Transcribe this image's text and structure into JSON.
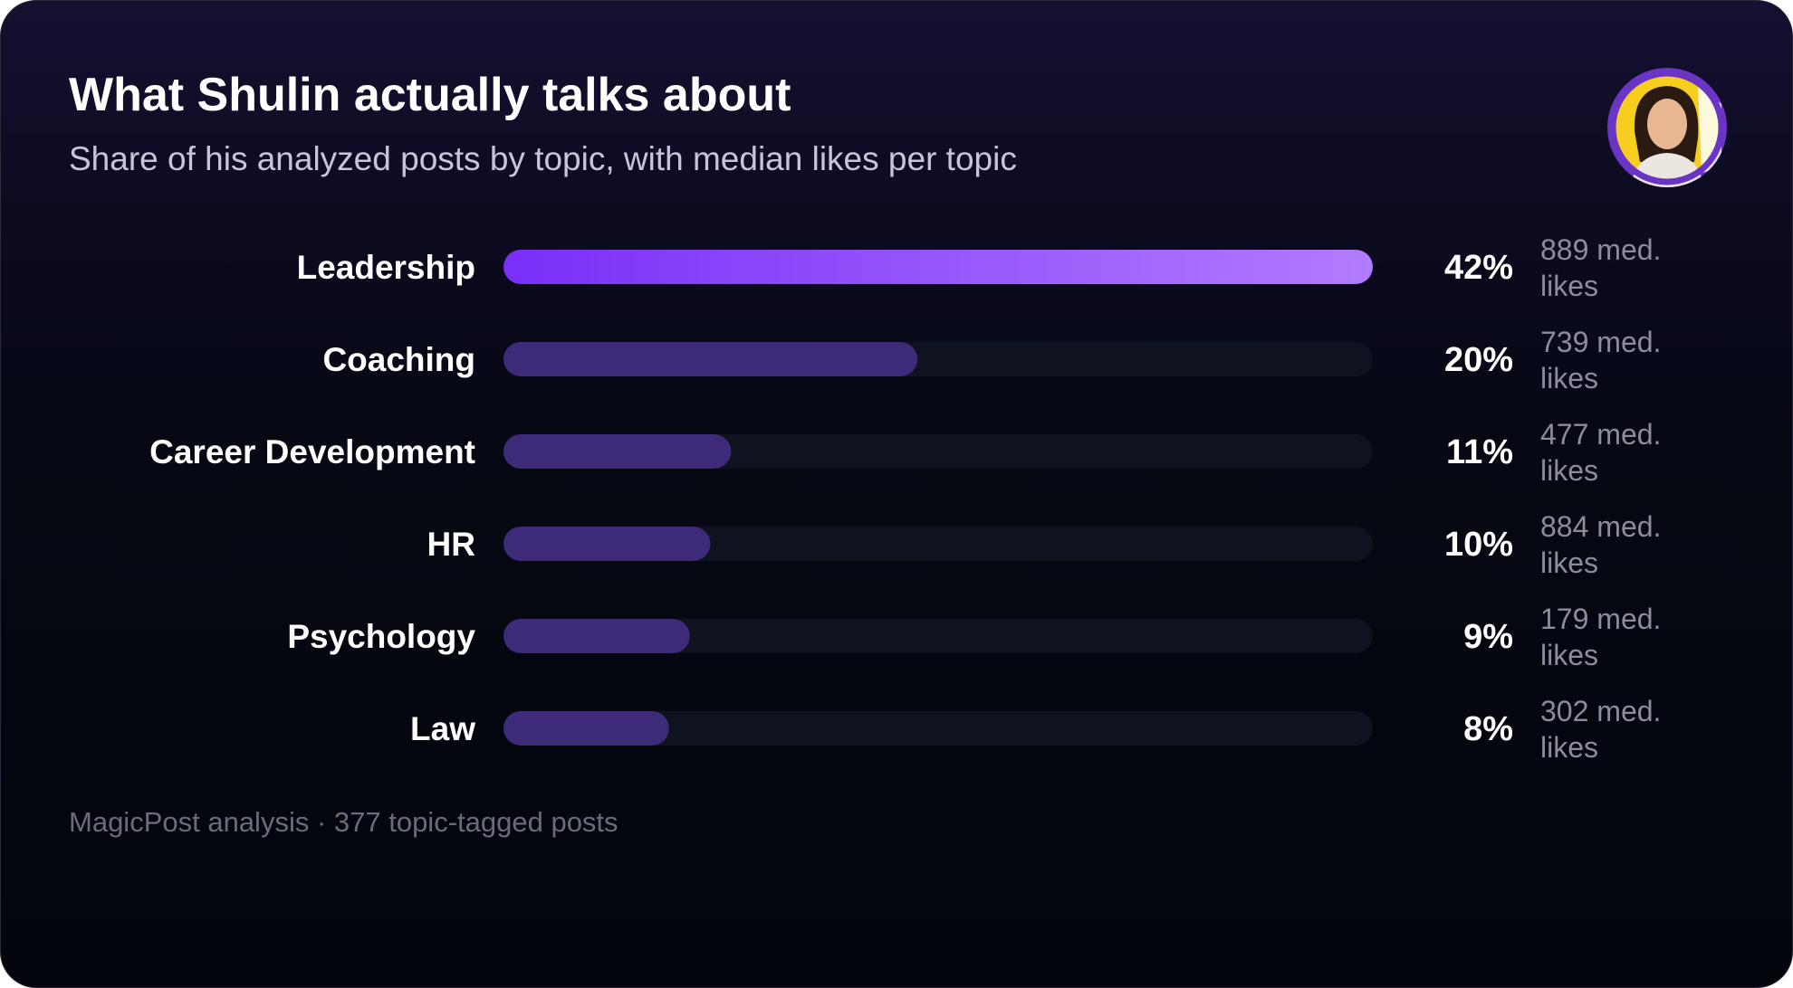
{
  "header": {
    "title": "What Shulin actually talks about",
    "subtitle": "Share of his analyzed posts by topic, with median likes per topic"
  },
  "footer": {
    "note": "MagicPost analysis · 377 topic-tagged posts"
  },
  "avatar": {
    "icon": "person-avatar",
    "ring_color": "#6a34c4",
    "background_color": "#f7cd1f"
  },
  "colors": {
    "highlight_bar_start": "#7b2ff7",
    "highlight_bar_end": "#b27cff",
    "bar": "#3d2a78",
    "track": "#0f131f"
  },
  "chart_data": {
    "type": "bar",
    "orientation": "horizontal",
    "title": "What Shulin actually talks about",
    "subtitle": "Share of his analyzed posts by topic, with median likes per topic",
    "categories": [
      "Leadership",
      "Coaching",
      "Career Development",
      "HR",
      "Psychology",
      "Law"
    ],
    "values": [
      42,
      20,
      11,
      10,
      9,
      8
    ],
    "value_labels": [
      "42%",
      "20%",
      "11%",
      "10%",
      "9%",
      "8%"
    ],
    "median_likes": [
      889,
      739,
      477,
      884,
      179,
      302
    ],
    "median_likes_labels": [
      [
        "889 med.",
        "likes"
      ],
      [
        "739 med.",
        "likes"
      ],
      [
        "477 med.",
        "likes"
      ],
      [
        "884 med.",
        "likes"
      ],
      [
        "179 med.",
        "likes"
      ],
      [
        "302 med.",
        "likes"
      ]
    ],
    "xlim": [
      0,
      42
    ],
    "highlight_index": 0,
    "grid": false,
    "legend": "none"
  }
}
